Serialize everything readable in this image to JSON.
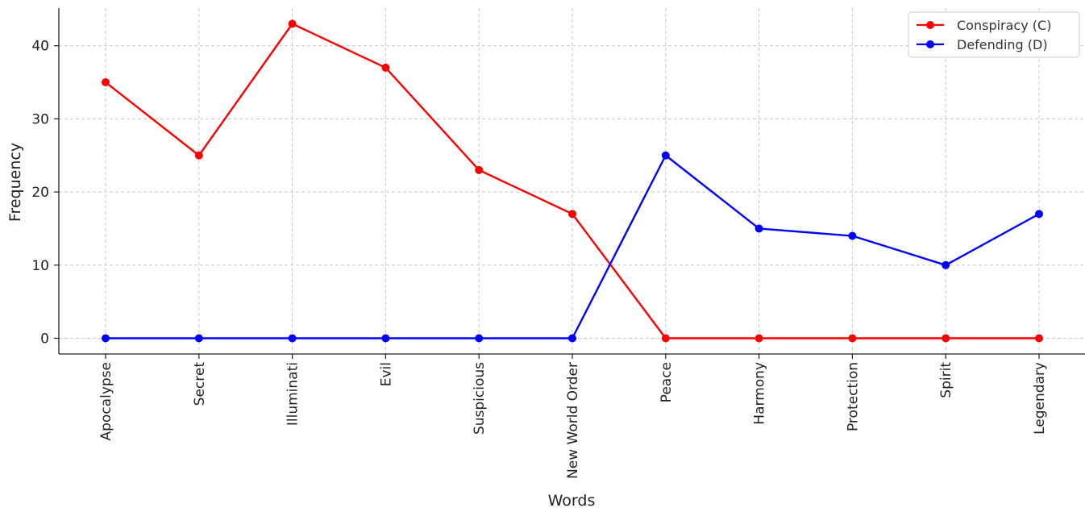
{
  "chart_data": {
    "type": "line",
    "title": "",
    "xlabel": "Words",
    "ylabel": "Frequency",
    "categories": [
      "Apocalypse",
      "Secret",
      "Illuminati",
      "Evil",
      "Suspicious",
      "New World Order",
      "Peace",
      "Harmony",
      "Protection",
      "Spirit",
      "Legendary"
    ],
    "series": [
      {
        "name": "Conspiracy (C)",
        "color": "#ff0000",
        "values": [
          35,
          25,
          43,
          37,
          23,
          17,
          0,
          0,
          0,
          0,
          0
        ]
      },
      {
        "name": "Defending (D)",
        "color": "#0000ff",
        "values": [
          0,
          0,
          0,
          0,
          0,
          0,
          25,
          15,
          14,
          10,
          17
        ]
      }
    ],
    "ylim": [
      -2.15,
      45.15
    ],
    "yticks": [
      0,
      10,
      20,
      30,
      40
    ],
    "grid": true,
    "legend_position": "top-right"
  }
}
